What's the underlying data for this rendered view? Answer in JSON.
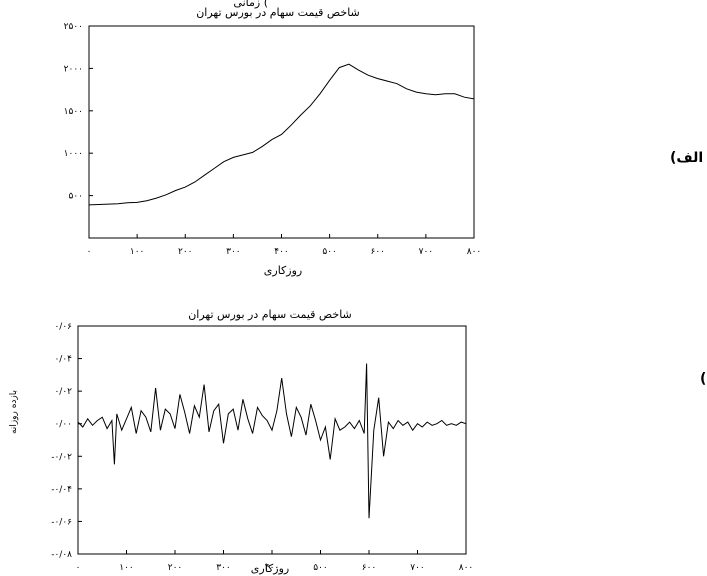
{
  "figure": {
    "header_fragment": "زمانی (",
    "panel_a_label": "الف)",
    "panel_b_label": "ب)"
  },
  "chart_data": [
    {
      "type": "line",
      "title": "شاخص قیمت سهام در بورس تهران",
      "xlabel": "روزکاری",
      "ylabel": "",
      "x_ticks": [
        "۰",
        "۱۰۰",
        "۲۰۰",
        "۳۰۰",
        "۴۰۰",
        "۵۰۰",
        "۶۰۰",
        "۷۰۰",
        "۸۰۰"
      ],
      "x_tick_values": [
        0,
        100,
        200,
        300,
        400,
        500,
        600,
        700,
        800
      ],
      "y_ticks": [
        "۵۰۰",
        "۱۰۰۰",
        "۱۵۰۰",
        "۲۰۰۰",
        "۲۵۰۰"
      ],
      "y_tick_values": [
        500,
        1000,
        1500,
        2000,
        2500
      ],
      "xlim": [
        0,
        800
      ],
      "ylim": [
        0,
        2500
      ],
      "grid": false,
      "series": [
        {
          "x": [
            0,
            20,
            40,
            60,
            80,
            100,
            120,
            140,
            160,
            180,
            200,
            220,
            240,
            260,
            280,
            300,
            320,
            340,
            360,
            380,
            400,
            420,
            440,
            460,
            480,
            500,
            520,
            540,
            560,
            580,
            600,
            620,
            640,
            660,
            680,
            700,
            720,
            740,
            760,
            780,
            800
          ],
          "values": [
            390,
            395,
            400,
            405,
            415,
            420,
            440,
            470,
            510,
            560,
            600,
            660,
            740,
            820,
            900,
            950,
            980,
            1010,
            1080,
            1160,
            1220,
            1330,
            1450,
            1560,
            1700,
            1860,
            2010,
            2050,
            1980,
            1920,
            1880,
            1850,
            1820,
            1760,
            1720,
            1700,
            1690,
            1700,
            1700,
            1660,
            1640
          ]
        }
      ]
    },
    {
      "type": "line",
      "title": "شاخص قیمت سهام در بورس تهران",
      "xlabel": "روزکاری",
      "ylabel": "بازده روزانه",
      "x_ticks": [
        "۰",
        "۱۰۰",
        "۲۰۰",
        "۳۰۰",
        "۴۰۰",
        "۵۰۰",
        "۶۰۰",
        "۷۰۰",
        "۸۰۰"
      ],
      "x_tick_values": [
        0,
        100,
        200,
        300,
        400,
        500,
        600,
        700,
        800
      ],
      "y_ticks": [
        "۰/۰۶",
        "۰/۰۴",
        "۰/۰۲",
        "۰/۰۰",
        "-۰/۰۲",
        "-۰/۰۴",
        "-۰/۰۶",
        "-۰/۰۸"
      ],
      "y_tick_values": [
        0.06,
        0.04,
        0.02,
        0.0,
        -0.02,
        -0.04,
        -0.06,
        -0.08
      ],
      "xlim": [
        0,
        800
      ],
      "ylim": [
        -0.08,
        0.06
      ],
      "grid": false,
      "series": [
        {
          "x": [
            0,
            10,
            20,
            30,
            40,
            50,
            60,
            70,
            75,
            80,
            90,
            100,
            110,
            120,
            130,
            140,
            150,
            160,
            170,
            180,
            190,
            200,
            210,
            220,
            230,
            240,
            250,
            260,
            270,
            280,
            290,
            300,
            310,
            320,
            330,
            340,
            350,
            360,
            370,
            380,
            390,
            400,
            410,
            420,
            430,
            440,
            450,
            460,
            470,
            480,
            490,
            500,
            510,
            520,
            530,
            540,
            550,
            560,
            570,
            580,
            590,
            595,
            600,
            610,
            620,
            630,
            640,
            650,
            660,
            670,
            680,
            690,
            700,
            710,
            720,
            730,
            740,
            750,
            760,
            770,
            780,
            790,
            800
          ],
          "values": [
            0.001,
            -0.002,
            0.003,
            -0.001,
            0.002,
            0.004,
            -0.003,
            0.002,
            -0.025,
            0.006,
            -0.004,
            0.003,
            0.01,
            -0.006,
            0.008,
            0.004,
            -0.005,
            0.022,
            -0.004,
            0.009,
            0.006,
            -0.003,
            0.018,
            0.007,
            -0.006,
            0.011,
            0.004,
            0.024,
            -0.005,
            0.008,
            0.012,
            -0.012,
            0.006,
            0.009,
            -0.004,
            0.015,
            0.003,
            -0.006,
            0.01,
            0.005,
            0.002,
            -0.004,
            0.008,
            0.028,
            0.006,
            -0.008,
            0.01,
            0.004,
            -0.007,
            0.012,
            0.002,
            -0.01,
            -0.002,
            -0.022,
            0.003,
            -0.004,
            -0.002,
            0.001,
            -0.003,
            0.002,
            -0.006,
            0.037,
            -0.058,
            -0.004,
            0.016,
            -0.02,
            0.001,
            -0.003,
            0.002,
            -0.001,
            0.001,
            -0.004,
            0.0,
            -0.002,
            0.001,
            -0.001,
            0.0,
            0.002,
            -0.001,
            0.0,
            -0.001,
            0.001,
            0.0
          ]
        }
      ]
    }
  ]
}
